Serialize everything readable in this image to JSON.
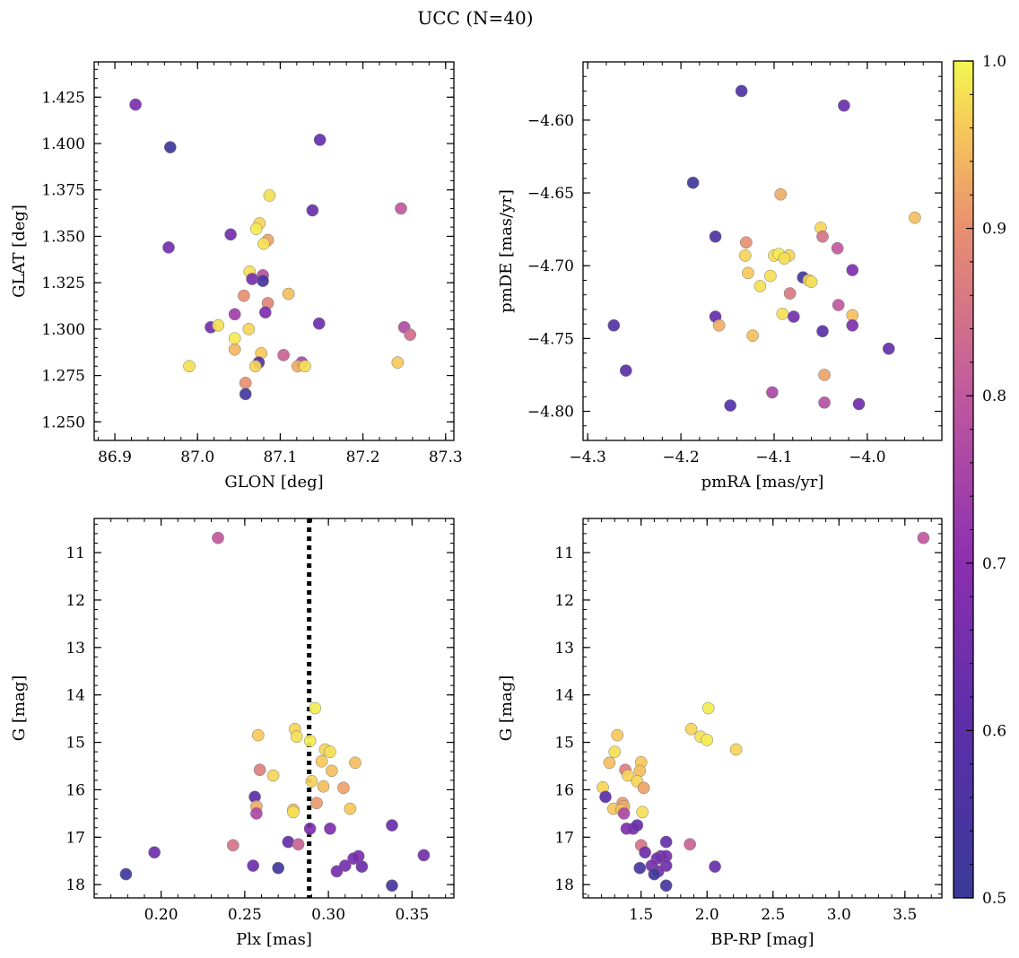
{
  "figure": {
    "suptitle": "UCC (N=40)"
  },
  "colorbar": {
    "range": [
      0.5,
      1.0
    ],
    "ticks": [
      0.5,
      0.6,
      0.7,
      0.8,
      0.9,
      1.0
    ],
    "tick_labels": [
      "0.5",
      "0.6",
      "0.7",
      "0.8",
      "0.9",
      "1.0"
    ],
    "colormap": "plasma"
  },
  "chart_data": [
    {
      "type": "scatter",
      "xlabel": "GLON [deg]",
      "ylabel": "GLAT [deg]",
      "xlim": [
        86.875,
        87.31
      ],
      "ylim": [
        1.24,
        1.444
      ],
      "xticks": [
        86.9,
        87.0,
        87.1,
        87.2,
        87.3
      ],
      "xtick_labels": [
        "86.9",
        "87.0",
        "87.1",
        "87.2",
        "87.3"
      ],
      "yticks": [
        1.25,
        1.275,
        1.3,
        1.325,
        1.35,
        1.375,
        1.4,
        1.425
      ],
      "ytick_labels": [
        "1.250",
        "1.275",
        "1.300",
        "1.325",
        "1.350",
        "1.375",
        "1.400",
        "1.425"
      ],
      "points": [
        [
          86.925,
          1.421,
          0.67
        ],
        [
          86.967,
          1.398,
          0.52
        ],
        [
          86.965,
          1.344,
          0.65
        ],
        [
          87.148,
          1.402,
          0.62
        ],
        [
          87.139,
          1.364,
          0.63
        ],
        [
          87.246,
          1.365,
          0.8
        ],
        [
          87.087,
          1.372,
          0.98
        ],
        [
          87.04,
          1.351,
          0.65
        ],
        [
          87.075,
          1.357,
          0.97
        ],
        [
          87.071,
          1.354,
          0.99
        ],
        [
          87.085,
          1.348,
          0.92
        ],
        [
          87.08,
          1.346,
          0.98
        ],
        [
          87.063,
          1.331,
          0.98
        ],
        [
          87.079,
          1.329,
          0.78
        ],
        [
          87.066,
          1.327,
          0.66
        ],
        [
          87.079,
          1.326,
          0.55
        ],
        [
          87.056,
          1.318,
          0.9
        ],
        [
          87.085,
          1.314,
          0.88
        ],
        [
          87.11,
          1.319,
          0.95
        ],
        [
          87.082,
          1.309,
          0.67
        ],
        [
          87.045,
          1.308,
          0.74
        ],
        [
          87.016,
          1.301,
          0.65
        ],
        [
          87.025,
          1.302,
          0.98
        ],
        [
          87.062,
          1.3,
          0.97
        ],
        [
          87.147,
          1.303,
          0.64
        ],
        [
          87.25,
          1.301,
          0.77
        ],
        [
          87.257,
          1.297,
          0.84
        ],
        [
          87.045,
          1.295,
          0.99
        ],
        [
          87.077,
          1.287,
          0.96
        ],
        [
          87.104,
          1.286,
          0.82
        ],
        [
          87.126,
          1.282,
          0.76
        ],
        [
          87.121,
          1.28,
          0.93
        ],
        [
          87.13,
          1.28,
          0.98
        ],
        [
          87.074,
          1.282,
          0.58
        ],
        [
          86.99,
          1.28,
          0.98
        ],
        [
          87.07,
          1.28,
          0.97
        ],
        [
          87.242,
          1.282,
          0.96
        ],
        [
          87.058,
          1.271,
          0.9
        ],
        [
          87.058,
          1.265,
          0.53
        ],
        [
          87.045,
          1.289,
          0.94
        ]
      ]
    },
    {
      "type": "scatter",
      "xlabel": "pmRA [mas/yr]",
      "ylabel": "pmDE [mas/yr]",
      "xlim": [
        -4.305,
        -3.92
      ],
      "ylim": [
        -4.82,
        -4.56
      ],
      "xticks": [
        -4.3,
        -4.2,
        -4.1,
        -4.0
      ],
      "xtick_labels": [
        "−4.3",
        "−4.2",
        "−4.1",
        "−4.0"
      ],
      "yticks": [
        -4.8,
        -4.75,
        -4.7,
        -4.65,
        -4.6
      ],
      "ytick_labels": [
        "−4.80",
        "−4.75",
        "−4.70",
        "−4.65",
        "−4.60"
      ],
      "points": [
        [
          -4.135,
          -4.58,
          0.56
        ],
        [
          -4.025,
          -4.59,
          0.63
        ],
        [
          -4.187,
          -4.643,
          0.52
        ],
        [
          -4.093,
          -4.651,
          0.93
        ],
        [
          -3.949,
          -4.667,
          0.95
        ],
        [
          -4.163,
          -4.68,
          0.57
        ],
        [
          -4.05,
          -4.674,
          0.97
        ],
        [
          -4.048,
          -4.68,
          0.85
        ],
        [
          -4.13,
          -4.684,
          0.9
        ],
        [
          -4.032,
          -4.688,
          0.8
        ],
        [
          -4.1,
          -4.693,
          0.98
        ],
        [
          -4.095,
          -4.692,
          0.99
        ],
        [
          -4.084,
          -4.693,
          0.97
        ],
        [
          -4.131,
          -4.693,
          0.97
        ],
        [
          -4.089,
          -4.695,
          0.98
        ],
        [
          -4.128,
          -4.705,
          0.96
        ],
        [
          -4.104,
          -4.707,
          0.98
        ],
        [
          -4.016,
          -4.703,
          0.68
        ],
        [
          -4.069,
          -4.708,
          0.53
        ],
        [
          -4.063,
          -4.71,
          0.97
        ],
        [
          -4.06,
          -4.711,
          0.98
        ],
        [
          -4.115,
          -4.714,
          0.98
        ],
        [
          -4.083,
          -4.719,
          0.86
        ],
        [
          -4.031,
          -4.727,
          0.8
        ],
        [
          -4.091,
          -4.733,
          0.98
        ],
        [
          -4.016,
          -4.734,
          0.95
        ],
        [
          -4.079,
          -4.735,
          0.65
        ],
        [
          -4.163,
          -4.735,
          0.62
        ],
        [
          -4.159,
          -4.741,
          0.93
        ],
        [
          -4.016,
          -4.741,
          0.67
        ],
        [
          -4.048,
          -4.745,
          0.6
        ],
        [
          -4.123,
          -4.748,
          0.95
        ],
        [
          -4.272,
          -4.741,
          0.58
        ],
        [
          -3.977,
          -4.757,
          0.62
        ],
        [
          -4.259,
          -4.772,
          0.6
        ],
        [
          -4.046,
          -4.775,
          0.92
        ],
        [
          -4.102,
          -4.787,
          0.76
        ],
        [
          -4.046,
          -4.794,
          0.78
        ],
        [
          -4.147,
          -4.796,
          0.58
        ],
        [
          -4.009,
          -4.795,
          0.64
        ]
      ]
    },
    {
      "type": "scatter",
      "xlabel": "Plx [mas]",
      "ylabel": "G [mag]",
      "xlim": [
        0.16,
        0.375
      ],
      "ylim": [
        18.28,
        10.28
      ],
      "inverted_y": true,
      "vline": 0.2885,
      "xticks": [
        0.2,
        0.25,
        0.3,
        0.35
      ],
      "xtick_labels": [
        "0.20",
        "0.25",
        "0.30",
        "0.35"
      ],
      "yticks": [
        11,
        12,
        13,
        14,
        15,
        16,
        17,
        18
      ],
      "ytick_labels": [
        "11",
        "12",
        "13",
        "14",
        "15",
        "16",
        "17",
        "18"
      ],
      "points": [
        [
          0.234,
          10.69,
          0.8
        ],
        [
          0.292,
          14.28,
          0.99
        ],
        [
          0.28,
          14.72,
          0.97
        ],
        [
          0.258,
          14.85,
          0.96
        ],
        [
          0.281,
          14.88,
          0.98
        ],
        [
          0.289,
          14.97,
          0.99
        ],
        [
          0.298,
          15.15,
          0.97
        ],
        [
          0.301,
          15.2,
          0.98
        ],
        [
          0.296,
          15.4,
          0.96
        ],
        [
          0.316,
          15.43,
          0.95
        ],
        [
          0.259,
          15.58,
          0.87
        ],
        [
          0.302,
          15.6,
          0.95
        ],
        [
          0.267,
          15.7,
          0.97
        ],
        [
          0.29,
          15.82,
          0.97
        ],
        [
          0.297,
          15.93,
          0.95
        ],
        [
          0.309,
          15.96,
          0.92
        ],
        [
          0.256,
          16.15,
          0.6
        ],
        [
          0.293,
          16.28,
          0.91
        ],
        [
          0.257,
          16.35,
          0.93
        ],
        [
          0.313,
          16.4,
          0.96
        ],
        [
          0.279,
          16.42,
          0.95
        ],
        [
          0.279,
          16.47,
          0.98
        ],
        [
          0.257,
          16.5,
          0.76
        ],
        [
          0.301,
          16.82,
          0.68
        ],
        [
          0.289,
          16.82,
          0.67
        ],
        [
          0.338,
          16.75,
          0.63
        ],
        [
          0.276,
          17.1,
          0.62
        ],
        [
          0.243,
          17.17,
          0.85
        ],
        [
          0.282,
          17.15,
          0.82
        ],
        [
          0.196,
          17.32,
          0.64
        ],
        [
          0.318,
          17.4,
          0.67
        ],
        [
          0.315,
          17.45,
          0.66
        ],
        [
          0.357,
          17.38,
          0.65
        ],
        [
          0.31,
          17.6,
          0.66
        ],
        [
          0.255,
          17.6,
          0.64
        ],
        [
          0.32,
          17.62,
          0.63
        ],
        [
          0.27,
          17.65,
          0.53
        ],
        [
          0.305,
          17.72,
          0.66
        ],
        [
          0.179,
          17.78,
          0.52
        ],
        [
          0.338,
          18.02,
          0.53
        ]
      ]
    },
    {
      "type": "scatter",
      "xlabel": "BP-RP [mag]",
      "ylabel": "G [mag]",
      "xlim": [
        1.06,
        3.78
      ],
      "ylim": [
        18.28,
        10.28
      ],
      "inverted_y": true,
      "xticks": [
        1.5,
        2.0,
        2.5,
        3.0,
        3.5
      ],
      "xtick_labels": [
        "1.5",
        "2.0",
        "2.5",
        "3.0",
        "3.5"
      ],
      "yticks": [
        11,
        12,
        13,
        14,
        15,
        16,
        17,
        18
      ],
      "ytick_labels": [
        "11",
        "12",
        "13",
        "14",
        "15",
        "16",
        "17",
        "18"
      ],
      "points": [
        [
          3.64,
          10.69,
          0.8
        ],
        [
          2.01,
          14.28,
          0.99
        ],
        [
          1.32,
          14.85,
          0.96
        ],
        [
          1.88,
          14.72,
          0.97
        ],
        [
          1.95,
          14.88,
          0.98
        ],
        [
          2.0,
          14.95,
          0.99
        ],
        [
          2.22,
          15.15,
          0.97
        ],
        [
          1.3,
          15.2,
          0.98
        ],
        [
          1.26,
          15.43,
          0.95
        ],
        [
          1.5,
          15.42,
          0.96
        ],
        [
          1.38,
          15.58,
          0.87
        ],
        [
          1.49,
          15.6,
          0.95
        ],
        [
          1.4,
          15.7,
          0.97
        ],
        [
          1.47,
          15.82,
          0.97
        ],
        [
          1.52,
          15.96,
          0.92
        ],
        [
          1.21,
          15.95,
          0.97
        ],
        [
          1.23,
          16.15,
          0.6
        ],
        [
          1.36,
          16.28,
          0.91
        ],
        [
          1.37,
          16.35,
          0.93
        ],
        [
          1.29,
          16.4,
          0.96
        ],
        [
          1.35,
          16.42,
          0.95
        ],
        [
          1.51,
          16.47,
          0.98
        ],
        [
          1.37,
          16.5,
          0.76
        ],
        [
          1.39,
          16.82,
          0.68
        ],
        [
          1.44,
          16.82,
          0.67
        ],
        [
          1.47,
          16.75,
          0.63
        ],
        [
          1.69,
          17.1,
          0.62
        ],
        [
          1.5,
          17.17,
          0.85
        ],
        [
          1.87,
          17.15,
          0.82
        ],
        [
          1.53,
          17.32,
          0.64
        ],
        [
          1.65,
          17.4,
          0.67
        ],
        [
          1.69,
          17.4,
          0.66
        ],
        [
          1.62,
          17.45,
          0.65
        ],
        [
          1.58,
          17.6,
          0.66
        ],
        [
          1.69,
          17.6,
          0.64
        ],
        [
          2.06,
          17.62,
          0.63
        ],
        [
          1.49,
          17.65,
          0.53
        ],
        [
          1.63,
          17.72,
          0.66
        ],
        [
          1.6,
          17.78,
          0.52
        ],
        [
          1.69,
          18.02,
          0.53
        ]
      ]
    }
  ]
}
